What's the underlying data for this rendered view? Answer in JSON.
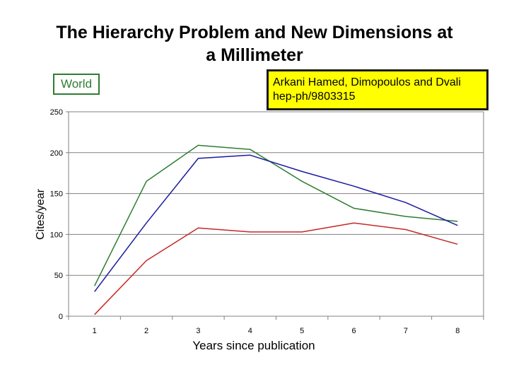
{
  "title": {
    "line1": "The Hierarchy Problem and New Dimensions at",
    "line2": "a Millimeter"
  },
  "legend_box": {
    "label": "World",
    "color": "#2e7d32"
  },
  "citation": {
    "line1": "Arkani Hamed, Dimopoulos and Dvali",
    "line2": "hep-ph/9803315"
  },
  "chart_data": {
    "type": "line",
    "xlabel": "Years since publication",
    "ylabel": "Cites/year",
    "categories": [
      "1",
      "2",
      "3",
      "4",
      "5",
      "6",
      "7",
      "8"
    ],
    "ylim": [
      0,
      250
    ],
    "yticks": [
      0,
      50,
      100,
      150,
      200,
      250
    ],
    "grid": true,
    "series": [
      {
        "color": "#2e7d32",
        "values": [
          37,
          165,
          209,
          204,
          165,
          132,
          122,
          116
        ]
      },
      {
        "color": "#1a1aa0",
        "values": [
          30,
          114,
          193,
          197,
          177,
          159,
          139,
          111
        ]
      },
      {
        "color": "#c62828",
        "values": [
          2,
          68,
          108,
          103,
          103,
          114,
          106,
          88
        ]
      }
    ]
  }
}
